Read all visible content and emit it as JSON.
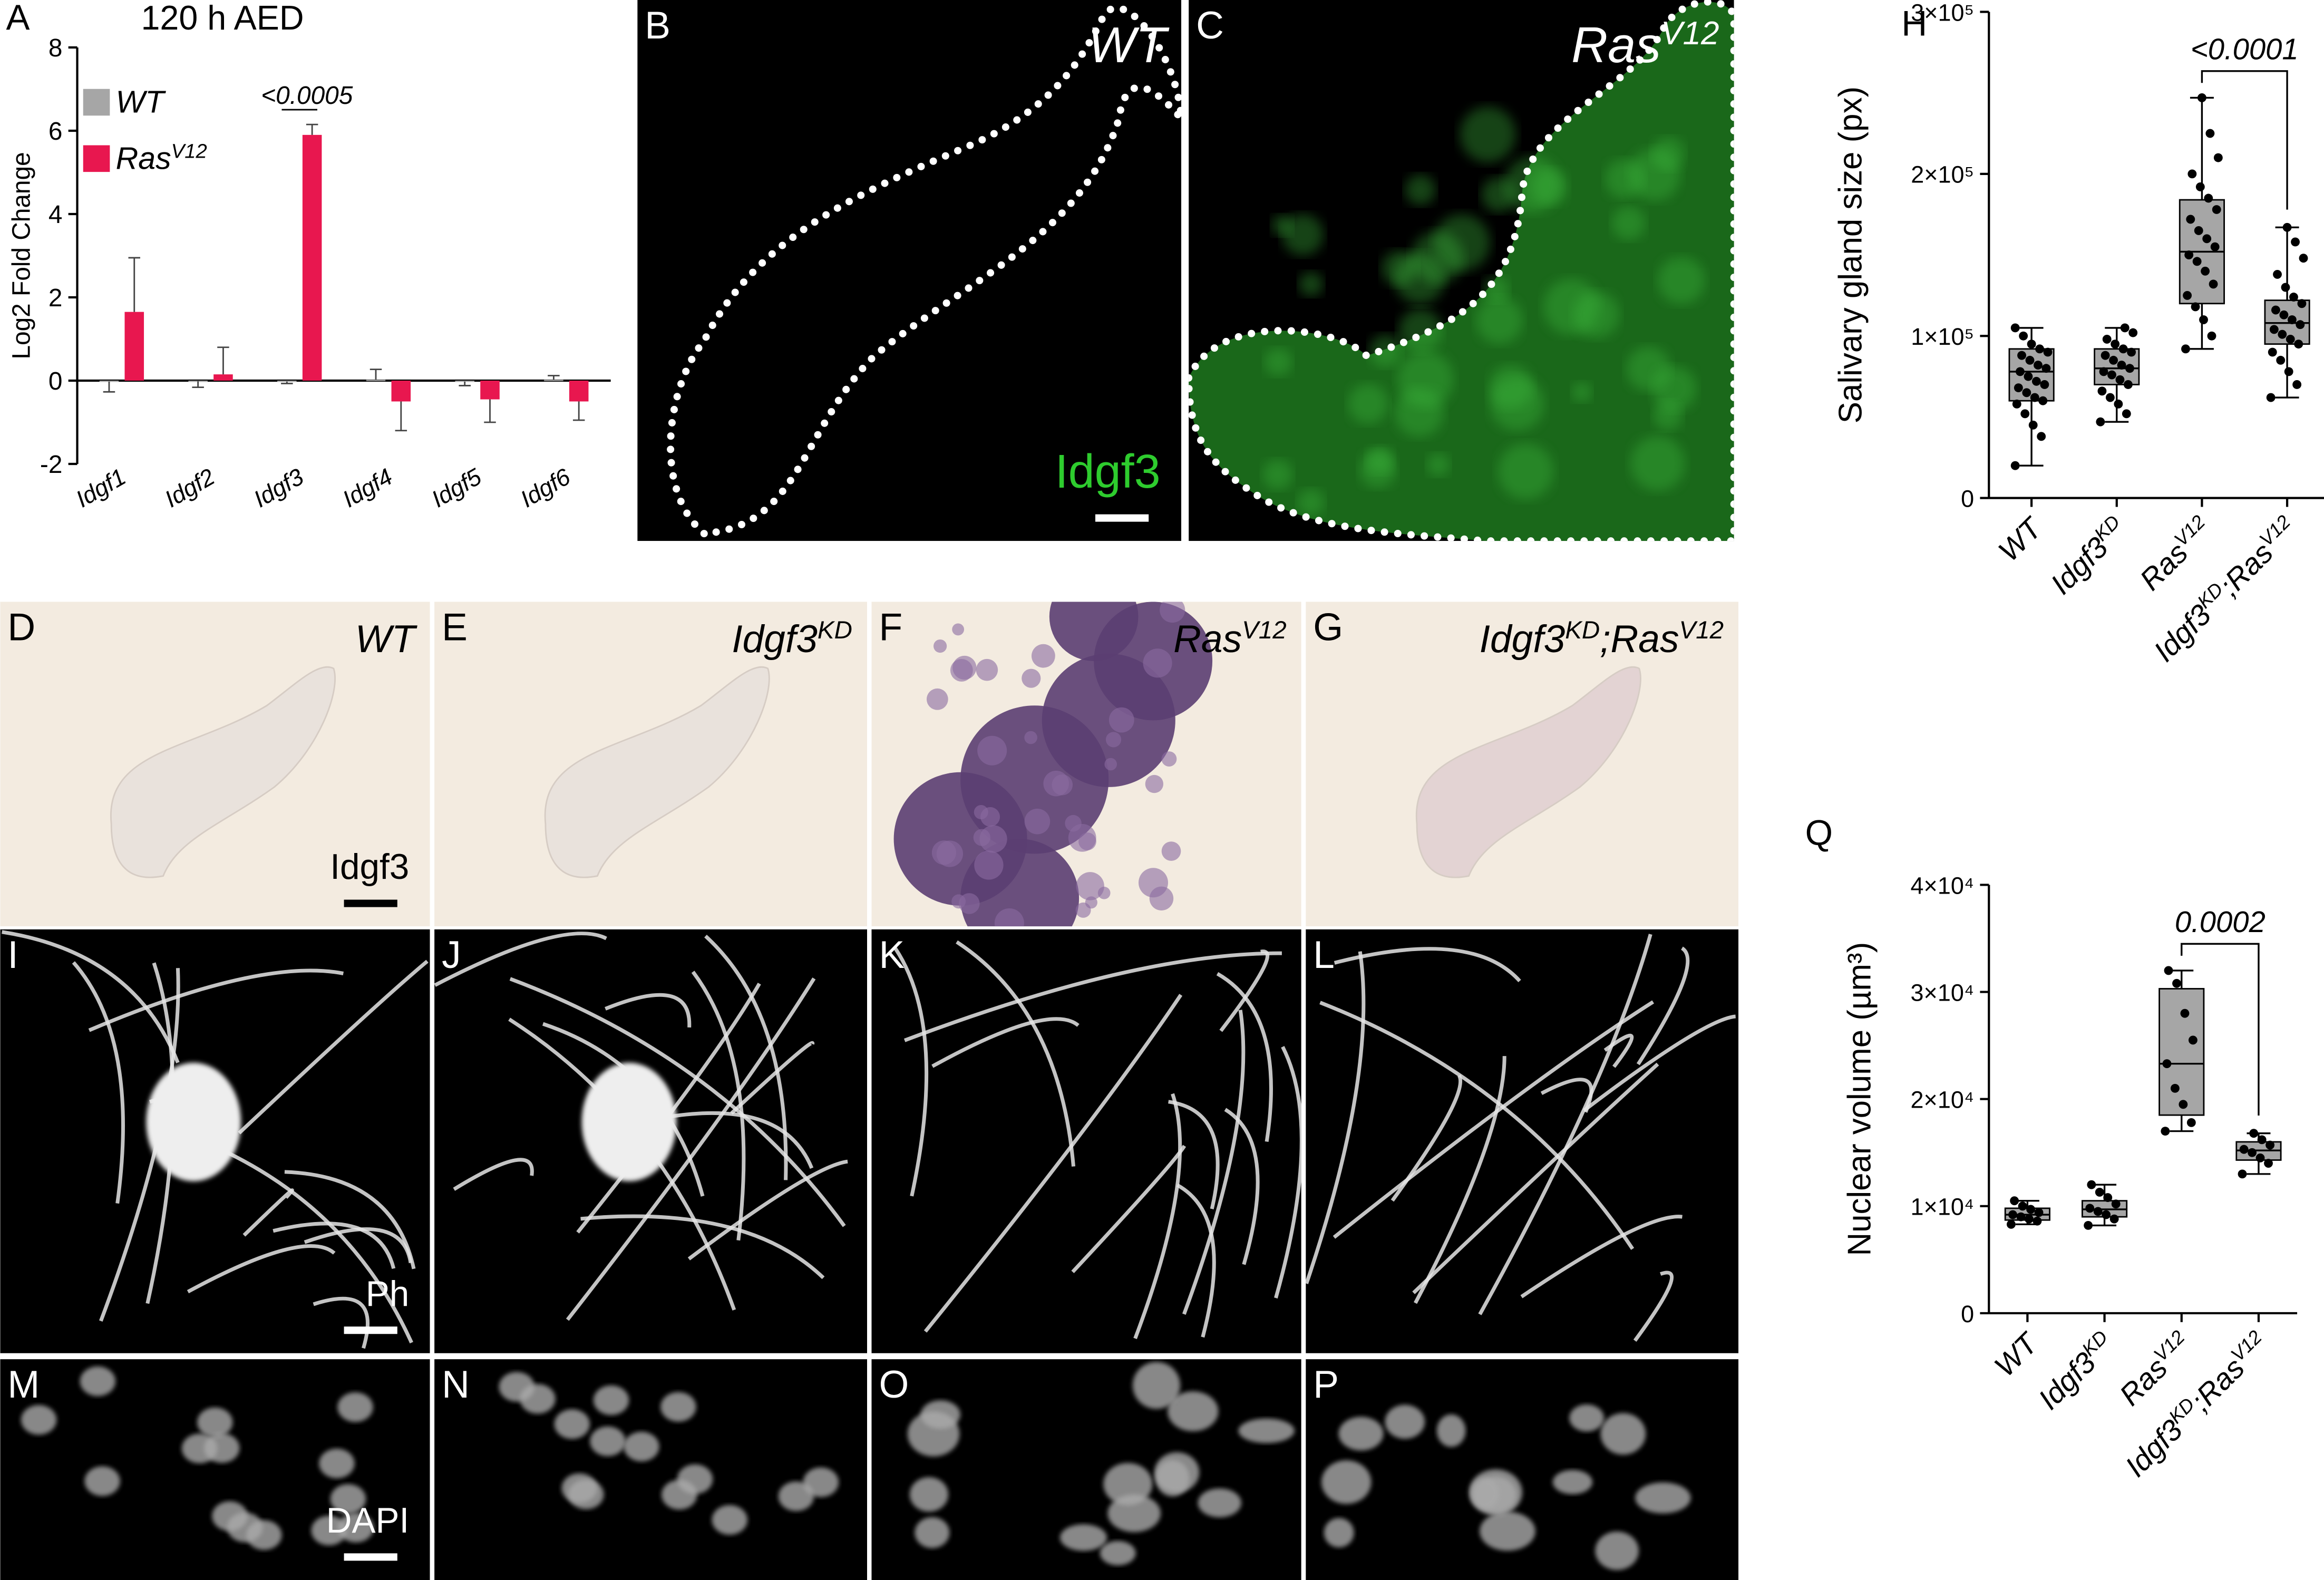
{
  "chart_data": [
    {
      "type": "bar",
      "panel": "A",
      "title": "120 h AED",
      "y_label": "Log2 Fold Change",
      "categories": [
        "Idgf1",
        "Idgf2",
        "Idgf3",
        "Idgf4",
        "Idgf5",
        "Idgf6"
      ],
      "series": [
        {
          "name": [
            "WT"
          ],
          "color": "#a6a6a6",
          "values": [
            -0.02,
            -0.01,
            -0.02,
            0.02,
            -0.02,
            0.02
          ],
          "errors": [
            0.25,
            0.15,
            0.05,
            0.25,
            0.1,
            0.1
          ]
        },
        {
          "name": [
            "Ras",
            "V12"
          ],
          "color": "#e8174f",
          "values": [
            1.65,
            0.15,
            5.9,
            -0.5,
            -0.45,
            -0.5
          ],
          "errors": [
            1.3,
            0.65,
            0.25,
            0.7,
            0.55,
            0.45
          ]
        }
      ],
      "ylim": [
        -2,
        8
      ],
      "yticks": [
        -2,
        0,
        2,
        4,
        6,
        8
      ],
      "annotation": "<0.0005"
    },
    {
      "type": "box",
      "panel": "H",
      "y_label": "Salivary gland size (px)",
      "color": "#a6a6a6",
      "categories": [
        [
          "WT"
        ],
        [
          "Idgf3",
          "KD"
        ],
        [
          "Ras",
          "V12"
        ],
        [
          "Idgf3",
          "KD",
          ";Ras",
          "V12"
        ]
      ],
      "boxes": [
        {
          "min": 20000,
          "q1": 60000,
          "median": 78000,
          "q3": 92000,
          "max": 105000,
          "points": [
            20000,
            38000,
            45000,
            52000,
            58000,
            60000,
            62000,
            65000,
            68000,
            70000,
            72000,
            75000,
            78000,
            80000,
            82000,
            85000,
            88000,
            90000,
            92000,
            95000,
            100000,
            105000
          ]
        },
        {
          "min": 47000,
          "q1": 70000,
          "median": 80000,
          "q3": 92000,
          "max": 105000,
          "points": [
            47000,
            52000,
            58000,
            62000,
            66000,
            70000,
            73000,
            76000,
            78000,
            80000,
            82000,
            85000,
            88000,
            90000,
            92000,
            95000,
            98000,
            102000,
            105000
          ]
        },
        {
          "min": 92000,
          "q1": 120000,
          "median": 152000,
          "q3": 184000,
          "max": 247000,
          "points": [
            92000,
            100000,
            110000,
            118000,
            125000,
            132000,
            140000,
            146000,
            150000,
            155000,
            160000,
            165000,
            172000,
            178000,
            185000,
            192000,
            200000,
            210000,
            225000,
            247000
          ]
        },
        {
          "min": 62000,
          "q1": 95000,
          "median": 108000,
          "q3": 122000,
          "max": 167000,
          "points": [
            62000,
            70000,
            78000,
            85000,
            90000,
            95000,
            98000,
            101000,
            104000,
            107000,
            110000,
            113000,
            116000,
            120000,
            124000,
            130000,
            138000,
            148000,
            158000,
            167000
          ]
        }
      ],
      "ylim": [
        0,
        300000
      ],
      "yticks": [
        0,
        {
          "value": 100000,
          "label": "1×10⁵"
        },
        {
          "value": 200000,
          "label": "2×10⁵"
        },
        {
          "value": 300000,
          "label": "3×10⁵"
        }
      ],
      "annotation": "<0.0001"
    },
    {
      "type": "box",
      "panel": "Q",
      "y_label": "Nuclear volume (µm³)",
      "color": "#a6a6a6",
      "categories": [
        [
          "WT"
        ],
        [
          "Idgf3",
          "KD"
        ],
        [
          "Ras",
          "V12"
        ],
        [
          "Idgf3",
          "KD",
          ";Ras",
          "V12"
        ]
      ],
      "boxes": [
        {
          "min": 8300,
          "q1": 8700,
          "median": 9200,
          "q3": 9800,
          "max": 10500,
          "points": [
            8300,
            8600,
            8800,
            9000,
            9200,
            9400,
            9700,
            10000,
            10500
          ]
        },
        {
          "min": 8200,
          "q1": 9000,
          "median": 9700,
          "q3": 10500,
          "max": 12000,
          "points": [
            8200,
            8800,
            9200,
            9500,
            9800,
            10200,
            10800,
            11300,
            12000
          ]
        },
        {
          "min": 17000,
          "q1": 18500,
          "median": 23300,
          "q3": 30300,
          "max": 32000,
          "points": [
            17000,
            17800,
            19500,
            21000,
            23300,
            25500,
            28000,
            30800,
            32000
          ]
        },
        {
          "min": 13000,
          "q1": 14300,
          "median": 15200,
          "q3": 16000,
          "max": 16800,
          "points": [
            13000,
            14000,
            14500,
            15000,
            15300,
            15700,
            16200,
            16800
          ]
        }
      ],
      "ylim": [
        0,
        40000
      ],
      "yticks": [
        0,
        {
          "value": 10000,
          "label": "1×10⁴"
        },
        {
          "value": 20000,
          "label": "2×10⁴"
        },
        {
          "value": 30000,
          "label": "3×10⁴"
        },
        {
          "value": 40000,
          "label": "4×10⁴"
        }
      ],
      "annotation": "0.0002"
    }
  ],
  "image_panels": [
    {
      "letter": "B",
      "label": [
        "WT"
      ],
      "stain": "Idgf3"
    },
    {
      "letter": "C",
      "label": [
        "Ras",
        "V12"
      ]
    },
    {
      "letter": "D",
      "label": [
        "WT"
      ],
      "stain": "Idgf3"
    },
    {
      "letter": "E",
      "label": [
        "Idgf3",
        "KD"
      ]
    },
    {
      "letter": "F",
      "label": [
        "Ras",
        "V12"
      ]
    },
    {
      "letter": "G",
      "label": [
        "Idgf3",
        "KD",
        ";Ras",
        "V12"
      ]
    },
    {
      "letter": "I",
      "stain": "Ph"
    },
    {
      "letter": "J"
    },
    {
      "letter": "K"
    },
    {
      "letter": "L"
    },
    {
      "letter": "M",
      "stain": "DAPI"
    },
    {
      "letter": "N"
    },
    {
      "letter": "O"
    },
    {
      "letter": "P"
    }
  ]
}
